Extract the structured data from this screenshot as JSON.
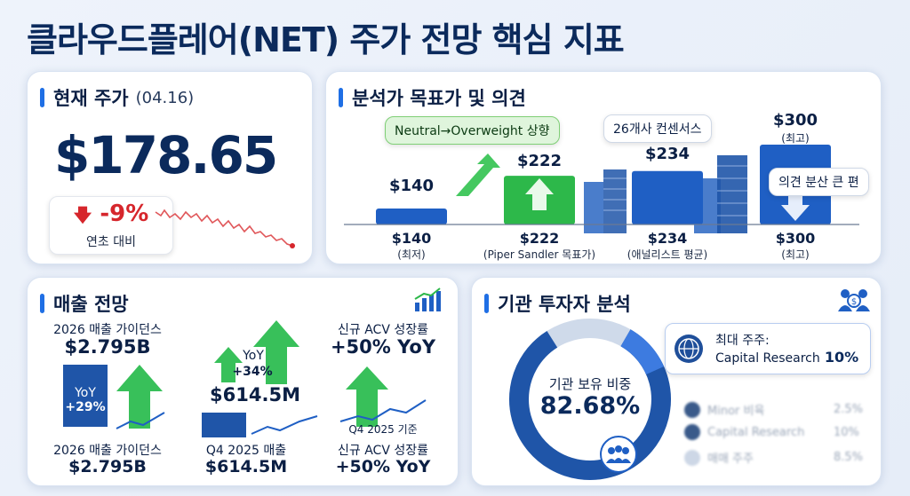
{
  "title": "클라우드플레어(NET) 주가 전망 핵심 지표",
  "price_card": {
    "heading": "현재 주가",
    "date": "(04.16)",
    "price": "$178.65",
    "ytd_change": "-9%",
    "ytd_label": "연초 대비"
  },
  "analyst_card": {
    "heading": "분석가 목표가 및 의견",
    "upgrade_note": "Neutral→Overweight 상향",
    "consensus_note": "26개사 컨센서스",
    "divergence_note": "의견 분산 큰 편",
    "bars": [
      {
        "top_label": "$140",
        "value": 140,
        "axis_value": "$140",
        "axis_desc": "(최저)",
        "color": "#1f5fc4"
      },
      {
        "top_label": "$222",
        "value": 222,
        "axis_value": "$222",
        "axis_desc": "(Piper Sandler 목표가)",
        "color": "#2db84a"
      },
      {
        "top_label": "$234",
        "value": 234,
        "axis_value": "$234",
        "axis_desc": "(애널리스트 평균)",
        "color": "#1f5fc4"
      },
      {
        "top_label": "$300",
        "top_desc": "(최고)",
        "value": 300,
        "axis_value": "$300",
        "axis_desc": "(최고)",
        "color": "#1f5fc4"
      }
    ]
  },
  "revenue_card": {
    "heading": "매출 전망",
    "guidance_label": "2026 매출 가이던스",
    "guidance_value": "$2.795B",
    "yoy_label": "YoY",
    "yoy_value": "+29%",
    "q4_yoy_label": "YoY",
    "q4_yoy_value": "+34%",
    "q4_value": "$614.5M",
    "acv_label": "신규 ACV 성장률",
    "acv_value": "+50% YoY",
    "acv_basis": "Q4 2025 기준",
    "bottom": [
      {
        "label": "2026 매출 가이던스",
        "value": "$2.795B"
      },
      {
        "label": "Q4 2025 매출",
        "value": "$614.5M"
      },
      {
        "label": "신규 ACV 성장률",
        "value": "+50% YoY"
      }
    ]
  },
  "institution_card": {
    "heading": "기관 투자자 분석",
    "ownership_label": "기관 보유 비중",
    "ownership_value": "82.68%",
    "ownership_pct": 82.68,
    "top_holder_label": "최대 주주:",
    "top_holder_name": "Capital Research",
    "top_holder_pct": "10%",
    "rows": [
      {
        "name": "Minor 비육",
        "pct": "2.5%"
      },
      {
        "name": "Capital Research",
        "pct": "10%"
      },
      {
        "name": "매매 주주",
        "pct": "8.5%"
      }
    ]
  },
  "icons": [
    "growth-chart-icon",
    "investors-icon",
    "globe-icon",
    "down-arrow-icon",
    "up-arrow-icon"
  ],
  "colors": {
    "navy": "#0b2a5c",
    "blue": "#1f5fc4",
    "green": "#2db84a",
    "red": "#d6262c"
  }
}
